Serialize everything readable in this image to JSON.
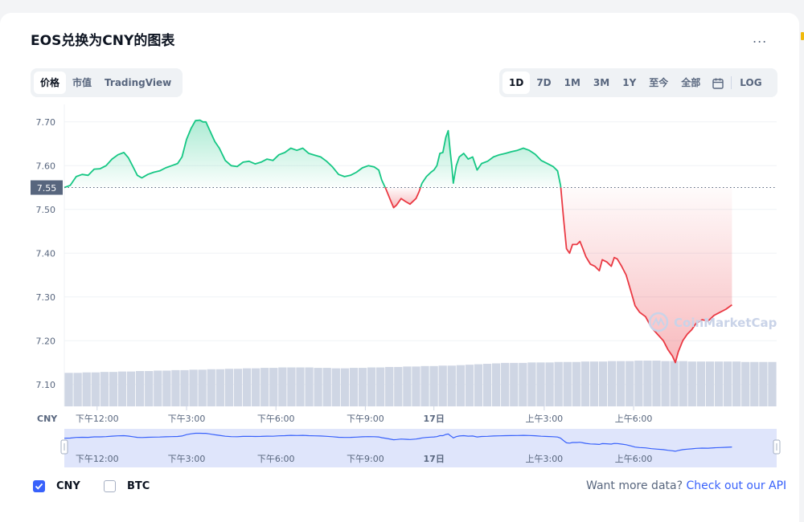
{
  "title": "EOS兑换为CNY的图表",
  "more_label": "...",
  "chart_tabs": [
    {
      "label": "价格",
      "active": true
    },
    {
      "label": "市值",
      "active": false
    },
    {
      "label": "TradingView",
      "active": false
    }
  ],
  "range_tabs": [
    {
      "label": "1D",
      "active": true
    },
    {
      "label": "7D",
      "active": false
    },
    {
      "label": "1M",
      "active": false
    },
    {
      "label": "3M",
      "active": false
    },
    {
      "label": "1Y",
      "active": false
    },
    {
      "label": "至今",
      "active": false
    },
    {
      "label": "全部",
      "active": false
    }
  ],
  "calendar_icon": "calendar-icon",
  "log_label": "LOG",
  "currency_label": "CNY",
  "watermark": "CoinMarketCap",
  "legend": [
    {
      "label": "CNY",
      "checked": true
    },
    {
      "label": "BTC",
      "checked": false
    }
  ],
  "api": {
    "prefix": "Want more data?",
    "link": "Check out our API"
  },
  "colors": {
    "up": "#16c784",
    "down": "#ea3943",
    "accent": "#3861fb",
    "volume": "#cfd6e4",
    "navigator": "#dfe5fb"
  },
  "chart_data": {
    "type": "line",
    "title": "EOS兑换为CNY的图表",
    "ylabel": "CNY",
    "ylim": [
      7.05,
      7.74
    ],
    "yticks": [
      7.1,
      7.2,
      7.3,
      7.4,
      7.5,
      7.6,
      7.7
    ],
    "ytick_labels": [
      "7.10",
      "7.20",
      "7.30",
      "7.40",
      "7.50",
      "7.60",
      "7.70"
    ],
    "x_ticks": [
      {
        "t": 12,
        "label": "下午12:00"
      },
      {
        "t": 15,
        "label": "下午3:00"
      },
      {
        "t": 18,
        "label": "下午6:00"
      },
      {
        "t": 21,
        "label": "下午9:00"
      },
      {
        "t": 23.3,
        "label": "17日",
        "bold": true
      },
      {
        "t": 27,
        "label": "上午3:00"
      },
      {
        "t": 30,
        "label": "上午6:00"
      }
    ],
    "xlim": [
      10.9,
      34.8
    ],
    "baseline": {
      "value": 7.55,
      "label": "7.55"
    },
    "grid": true,
    "legend": "bottom-left",
    "series": [
      {
        "name": "CNY",
        "points": [
          [
            10.9,
            7.55
          ],
          [
            11.1,
            7.555
          ],
          [
            11.3,
            7.575
          ],
          [
            11.5,
            7.58
          ],
          [
            11.7,
            7.578
          ],
          [
            11.9,
            7.592
          ],
          [
            12.1,
            7.593
          ],
          [
            12.3,
            7.6
          ],
          [
            12.5,
            7.615
          ],
          [
            12.7,
            7.625
          ],
          [
            12.9,
            7.63
          ],
          [
            13.05,
            7.618
          ],
          [
            13.2,
            7.598
          ],
          [
            13.35,
            7.578
          ],
          [
            13.5,
            7.572
          ],
          [
            13.7,
            7.58
          ],
          [
            13.9,
            7.585
          ],
          [
            14.1,
            7.588
          ],
          [
            14.3,
            7.595
          ],
          [
            14.5,
            7.6
          ],
          [
            14.7,
            7.605
          ],
          [
            14.85,
            7.62
          ],
          [
            15.0,
            7.66
          ],
          [
            15.15,
            7.685
          ],
          [
            15.3,
            7.703
          ],
          [
            15.45,
            7.704
          ],
          [
            15.55,
            7.7
          ],
          [
            15.65,
            7.7
          ],
          [
            15.75,
            7.685
          ],
          [
            15.85,
            7.67
          ],
          [
            15.95,
            7.655
          ],
          [
            16.1,
            7.64
          ],
          [
            16.3,
            7.612
          ],
          [
            16.5,
            7.6
          ],
          [
            16.7,
            7.598
          ],
          [
            16.9,
            7.608
          ],
          [
            17.1,
            7.61
          ],
          [
            17.3,
            7.604
          ],
          [
            17.5,
            7.608
          ],
          [
            17.7,
            7.615
          ],
          [
            17.9,
            7.612
          ],
          [
            18.1,
            7.625
          ],
          [
            18.3,
            7.63
          ],
          [
            18.5,
            7.64
          ],
          [
            18.7,
            7.635
          ],
          [
            18.9,
            7.64
          ],
          [
            19.1,
            7.628
          ],
          [
            19.3,
            7.624
          ],
          [
            19.5,
            7.62
          ],
          [
            19.7,
            7.61
          ],
          [
            19.9,
            7.597
          ],
          [
            20.1,
            7.58
          ],
          [
            20.3,
            7.575
          ],
          [
            20.5,
            7.578
          ],
          [
            20.7,
            7.585
          ],
          [
            20.9,
            7.595
          ],
          [
            21.1,
            7.6
          ],
          [
            21.3,
            7.597
          ],
          [
            21.45,
            7.59
          ],
          [
            21.55,
            7.567
          ],
          [
            21.7,
            7.545
          ],
          [
            21.85,
            7.52
          ],
          [
            21.95,
            7.504
          ],
          [
            22.05,
            7.51
          ],
          [
            22.2,
            7.525
          ],
          [
            22.35,
            7.518
          ],
          [
            22.5,
            7.512
          ],
          [
            22.7,
            7.525
          ],
          [
            22.8,
            7.54
          ],
          [
            22.9,
            7.56
          ],
          [
            23.05,
            7.575
          ],
          [
            23.2,
            7.585
          ],
          [
            23.3,
            7.59
          ],
          [
            23.4,
            7.6
          ],
          [
            23.5,
            7.628
          ],
          [
            23.6,
            7.63
          ],
          [
            23.7,
            7.665
          ],
          [
            23.78,
            7.68
          ],
          [
            23.85,
            7.63
          ],
          [
            23.9,
            7.6
          ],
          [
            23.95,
            7.56
          ],
          [
            24.05,
            7.6
          ],
          [
            24.15,
            7.62
          ],
          [
            24.3,
            7.628
          ],
          [
            24.45,
            7.615
          ],
          [
            24.6,
            7.62
          ],
          [
            24.75,
            7.59
          ],
          [
            24.9,
            7.605
          ],
          [
            25.1,
            7.61
          ],
          [
            25.3,
            7.62
          ],
          [
            25.5,
            7.625
          ],
          [
            25.7,
            7.628
          ],
          [
            25.9,
            7.632
          ],
          [
            26.1,
            7.635
          ],
          [
            26.3,
            7.64
          ],
          [
            26.5,
            7.635
          ],
          [
            26.7,
            7.626
          ],
          [
            26.9,
            7.612
          ],
          [
            27.1,
            7.605
          ],
          [
            27.3,
            7.598
          ],
          [
            27.45,
            7.588
          ],
          [
            27.55,
            7.555
          ],
          [
            27.65,
            7.48
          ],
          [
            27.75,
            7.41
          ],
          [
            27.85,
            7.4
          ],
          [
            27.95,
            7.42
          ],
          [
            28.1,
            7.42
          ],
          [
            28.2,
            7.427
          ],
          [
            28.3,
            7.41
          ],
          [
            28.4,
            7.392
          ],
          [
            28.55,
            7.375
          ],
          [
            28.7,
            7.37
          ],
          [
            28.85,
            7.36
          ],
          [
            28.95,
            7.385
          ],
          [
            29.1,
            7.38
          ],
          [
            29.25,
            7.37
          ],
          [
            29.35,
            7.39
          ],
          [
            29.45,
            7.387
          ],
          [
            29.6,
            7.37
          ],
          [
            29.75,
            7.35
          ],
          [
            29.9,
            7.315
          ],
          [
            30.05,
            7.28
          ],
          [
            30.2,
            7.265
          ],
          [
            30.4,
            7.255
          ],
          [
            30.6,
            7.23
          ],
          [
            30.8,
            7.215
          ],
          [
            31.0,
            7.2
          ],
          [
            31.15,
            7.18
          ],
          [
            31.3,
            7.165
          ],
          [
            31.4,
            7.15
          ],
          [
            31.5,
            7.175
          ],
          [
            31.65,
            7.2
          ],
          [
            31.8,
            7.215
          ],
          [
            31.95,
            7.225
          ],
          [
            32.1,
            7.24
          ],
          [
            32.3,
            7.248
          ],
          [
            32.5,
            7.245
          ],
          [
            32.7,
            7.258
          ],
          [
            32.9,
            7.265
          ],
          [
            33.1,
            7.272
          ],
          [
            33.3,
            7.282
          ]
        ]
      }
    ],
    "volume": {
      "ylim": [
        0,
        110
      ],
      "values": [
        74,
        74,
        75,
        75,
        76,
        76,
        77,
        77,
        78,
        78,
        79,
        79,
        80,
        80,
        81,
        81,
        82,
        82,
        83,
        83,
        84,
        84,
        85,
        85,
        86,
        86,
        86,
        86,
        85,
        85,
        84,
        84,
        85,
        85,
        86,
        86,
        87,
        87,
        88,
        88,
        89,
        89,
        90,
        90,
        91,
        92,
        93,
        94,
        95,
        96,
        96,
        96,
        97,
        97,
        97,
        98,
        98,
        98,
        99,
        99,
        99,
        100,
        100,
        100,
        101,
        101,
        101,
        100,
        100,
        100,
        99,
        99,
        99,
        99,
        99,
        99,
        98,
        98,
        98,
        98
      ]
    }
  }
}
